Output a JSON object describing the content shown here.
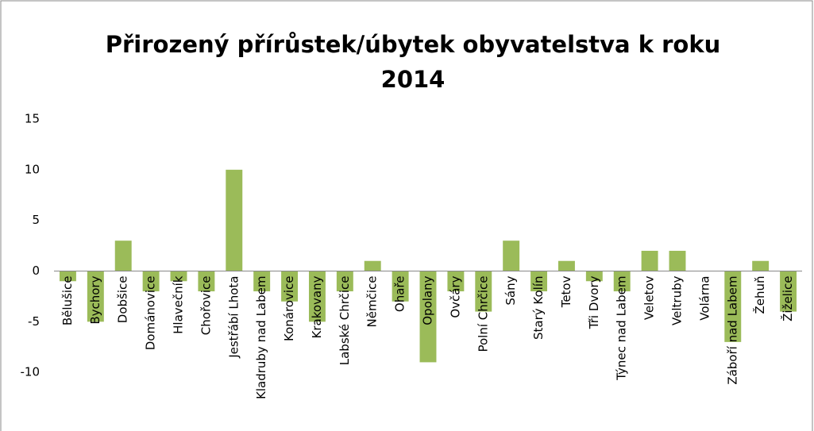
{
  "chart_data": {
    "type": "bar",
    "title": [
      "Přirozený přírůstek/úbytek obyvatelstva k roku",
      "2014"
    ],
    "categories": [
      "Bělušice",
      "Bychory",
      "Dobšice",
      "Dománovice",
      "Hlavečník",
      "Chořovice",
      "Jestřábí Lhota",
      "Kladruby nad Labem",
      "Konárovice",
      "Krakovany",
      "Labské Chrčice",
      "Němčice",
      "Ohaře",
      "Opolany",
      "Ovčáry",
      "Polní Chrčice",
      "Sány",
      "Starý Kolín",
      "Tetov",
      "Tři Dvory",
      "Týnec nad Labem",
      "Veletov",
      "Veltruby",
      "Volárna",
      "Záboří nad Labem",
      "Žehuň",
      "Žiželice"
    ],
    "values": [
      -1,
      -5,
      3,
      -2,
      -1,
      -2,
      10,
      -2,
      -3,
      -5,
      -2,
      1,
      -3,
      -9,
      -2,
      -4,
      3,
      -2,
      1,
      -1,
      -2,
      2,
      2,
      0,
      -7,
      1,
      -4
    ],
    "color": "#9bbb59",
    "ylim": [
      -15,
      15
    ],
    "yticks": [
      -10,
      -5,
      0,
      5,
      10,
      15
    ],
    "grid": false
  }
}
